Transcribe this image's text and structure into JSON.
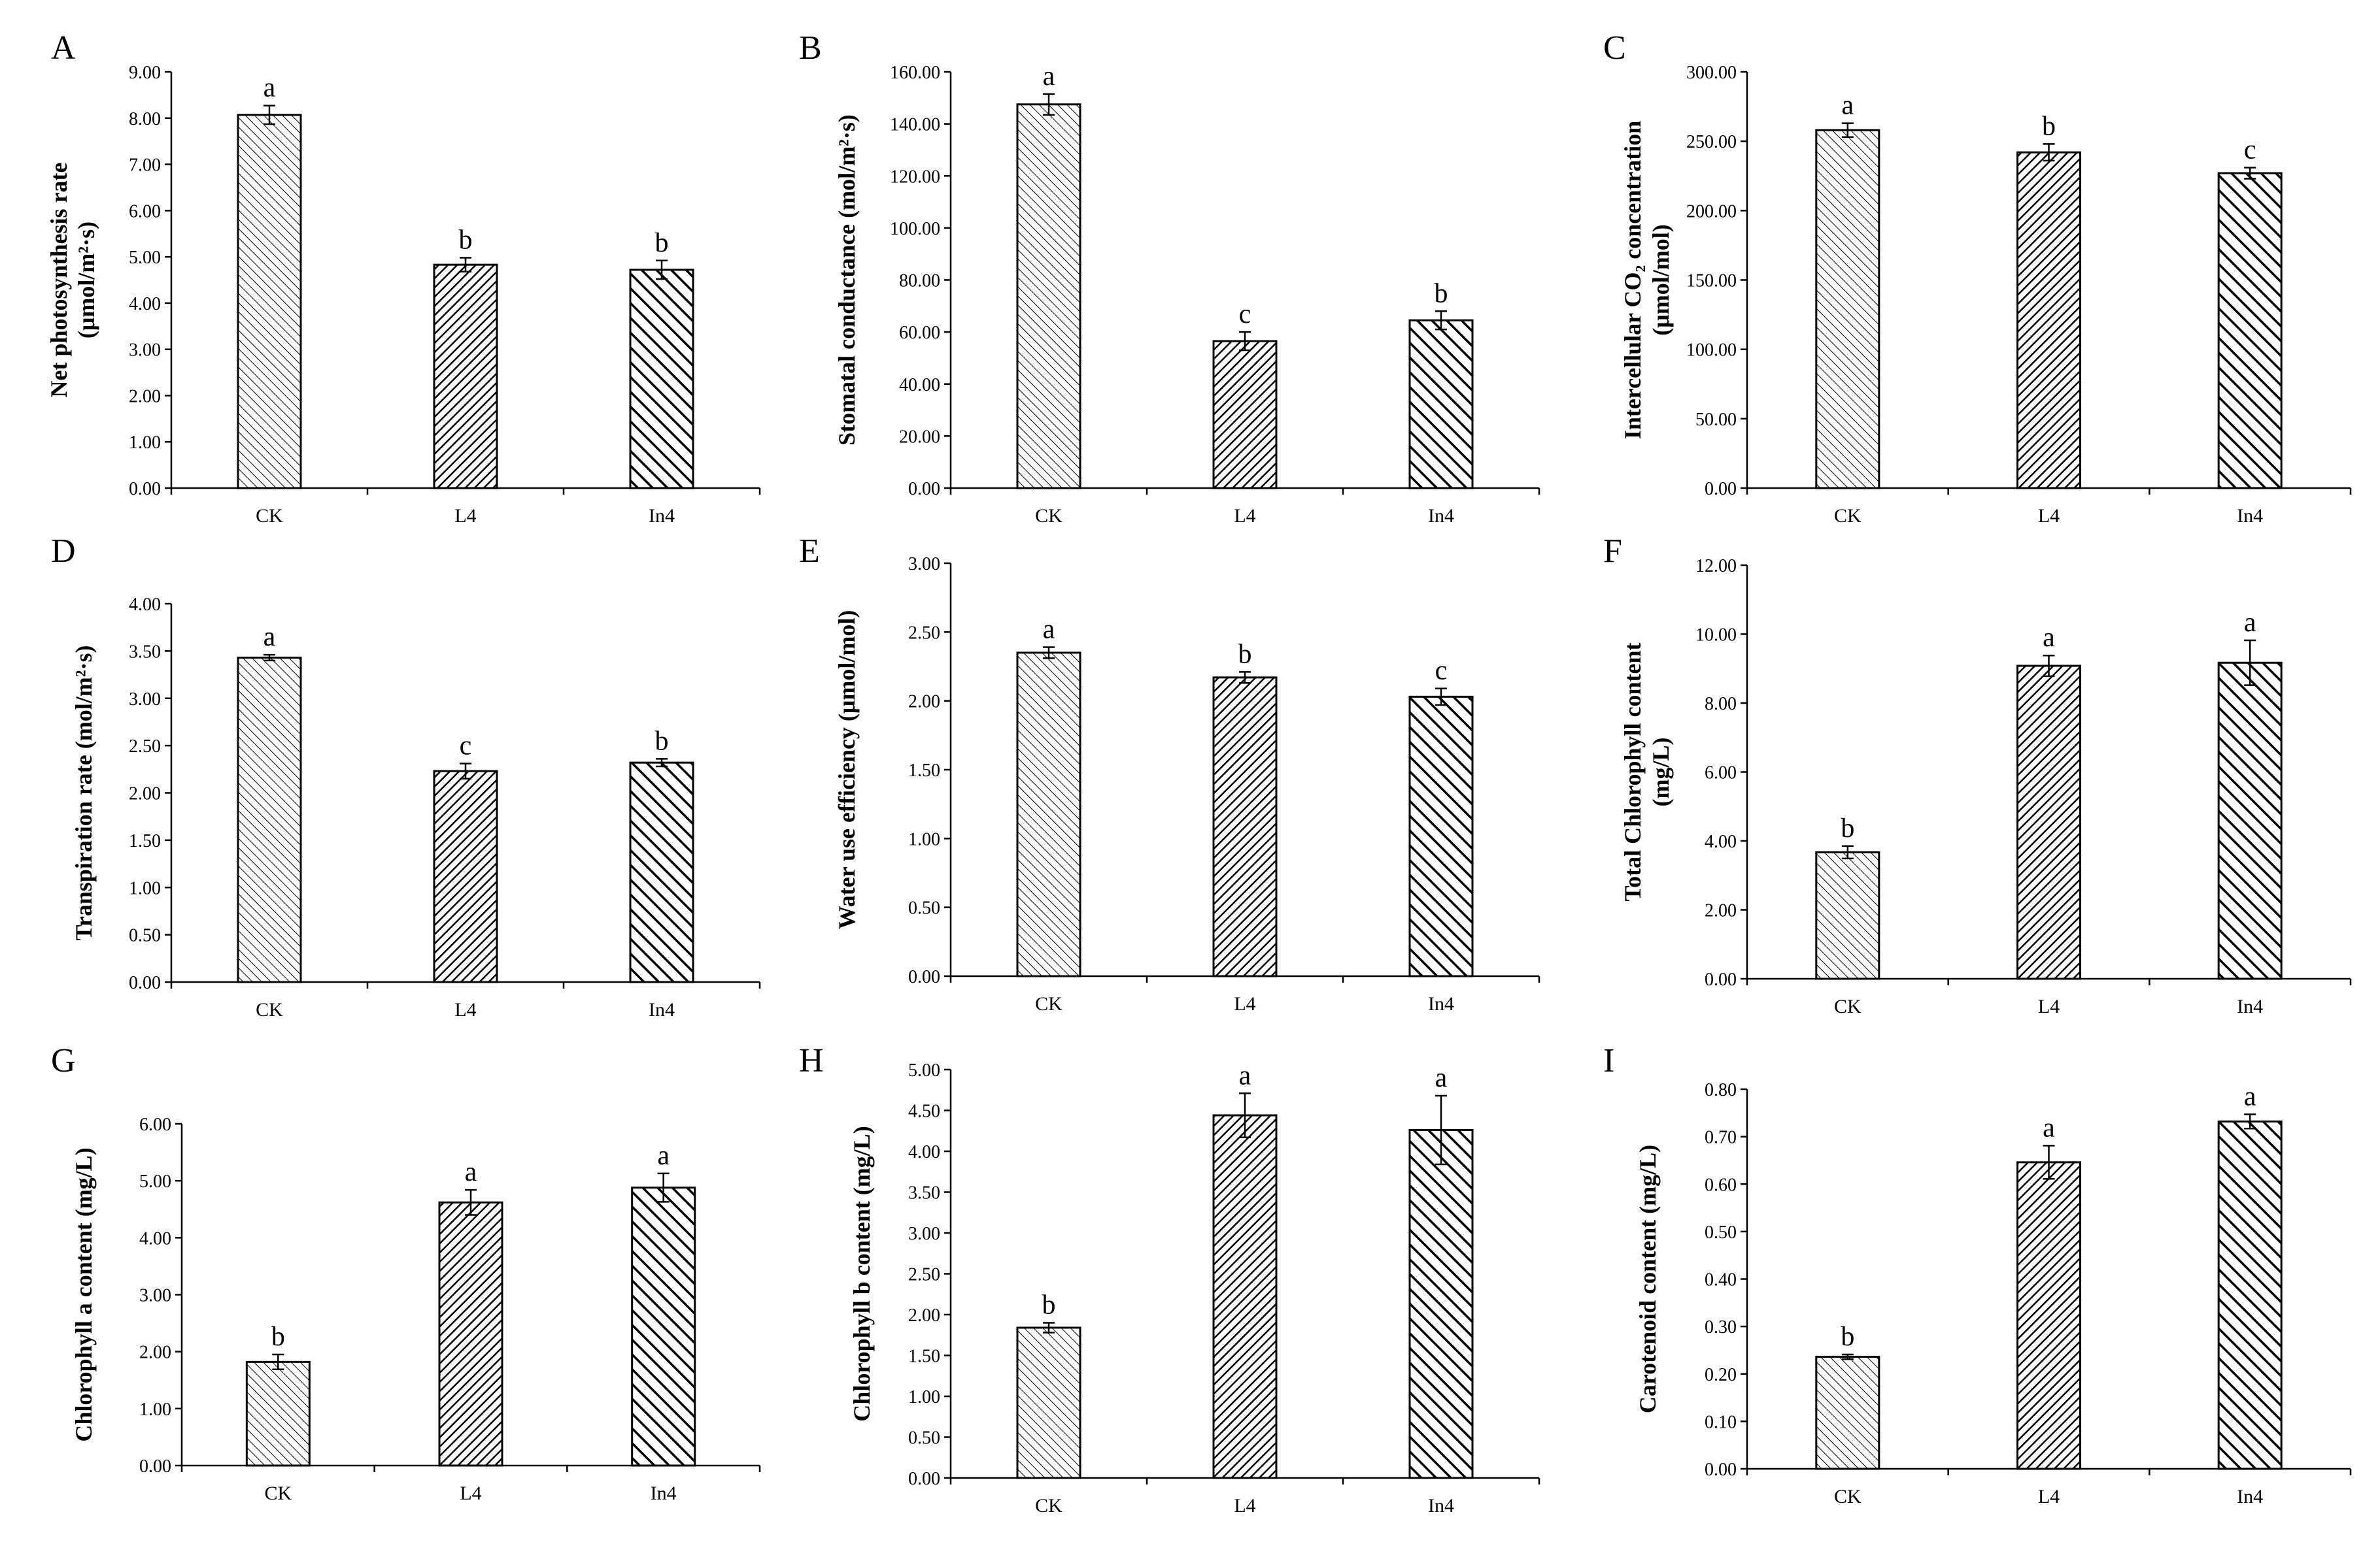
{
  "categories": [
    "CK",
    "L4",
    "In4"
  ],
  "colors": {
    "axis": "#000000",
    "background": "#ffffff"
  },
  "chart_data": [
    {
      "id": "A",
      "type": "bar",
      "letter": "A",
      "ylabel_lines": [
        "Net photosynthesis rate",
        "(μmol/m²·s)"
      ],
      "ylim": [
        0,
        9
      ],
      "ytick_step": 1,
      "ytick_labels": [
        "0.00",
        "1.00",
        "2.00",
        "3.00",
        "4.00",
        "5.00",
        "6.00",
        "7.00",
        "8.00",
        "9.00"
      ],
      "categories": [
        "CK",
        "L4",
        "In4"
      ],
      "values": [
        8.07,
        4.83,
        4.72
      ],
      "errors": [
        0.2,
        0.15,
        0.2
      ],
      "significance": [
        "a",
        "b",
        "b"
      ]
    },
    {
      "id": "B",
      "type": "bar",
      "letter": "B",
      "ylabel_lines": [
        "Stomatal conductance (mol/m²·s)"
      ],
      "ylim": [
        0,
        160
      ],
      "ytick_step": 20,
      "ytick_labels": [
        "0.00",
        "20.00",
        "40.00",
        "60.00",
        "80.00",
        "100.00",
        "120.00",
        "140.00",
        "160.00"
      ],
      "categories": [
        "CK",
        "L4",
        "In4"
      ],
      "values": [
        147.5,
        56.5,
        64.5
      ],
      "errors": [
        4.0,
        3.5,
        3.5
      ],
      "significance": [
        "a",
        "c",
        "b"
      ]
    },
    {
      "id": "C",
      "type": "bar",
      "letter": "C",
      "ylabel_lines": [
        "Intercellular CO₂ concentration",
        "(μmol/mol)"
      ],
      "ylim": [
        0,
        300
      ],
      "ytick_step": 50,
      "ytick_labels": [
        "0.00",
        "50.00",
        "100.00",
        "150.00",
        "200.00",
        "250.00",
        "300.00"
      ],
      "categories": [
        "CK",
        "L4",
        "In4"
      ],
      "values": [
        258,
        242,
        227
      ],
      "errors": [
        5,
        6,
        4
      ],
      "significance": [
        "a",
        "b",
        "c"
      ]
    },
    {
      "id": "D",
      "type": "bar",
      "letter": "D",
      "ylabel_lines": [
        "Transpiration rate (mol/m²·s)"
      ],
      "ylim": [
        0,
        4
      ],
      "ytick_step": 0.5,
      "ytick_labels": [
        "0.00",
        "0.50",
        "1.00",
        "1.50",
        "2.00",
        "2.50",
        "3.00",
        "3.50",
        "4.00"
      ],
      "categories": [
        "CK",
        "L4",
        "In4"
      ],
      "values": [
        3.43,
        2.23,
        2.32
      ],
      "errors": [
        0.03,
        0.08,
        0.04
      ],
      "significance": [
        "a",
        "c",
        "b"
      ]
    },
    {
      "id": "E",
      "type": "bar",
      "letter": "E",
      "ylabel_lines": [
        "Water use efficiency (μmol/mol)"
      ],
      "ylim": [
        0,
        3
      ],
      "ytick_step": 0.5,
      "ytick_labels": [
        "0.00",
        "0.50",
        "1.00",
        "1.50",
        "2.00",
        "2.50",
        "3.00"
      ],
      "categories": [
        "CK",
        "L4",
        "In4"
      ],
      "values": [
        2.35,
        2.17,
        2.03
      ],
      "errors": [
        0.04,
        0.04,
        0.06
      ],
      "significance": [
        "a",
        "b",
        "c"
      ]
    },
    {
      "id": "F",
      "type": "bar",
      "letter": "F",
      "ylabel_lines": [
        "Total Chlorophyll content",
        "(mg/L)"
      ],
      "ylim": [
        0,
        12
      ],
      "ytick_step": 2,
      "ytick_labels": [
        "0.00",
        "2.00",
        "4.00",
        "6.00",
        "8.00",
        "10.00",
        "12.00"
      ],
      "categories": [
        "CK",
        "L4",
        "In4"
      ],
      "values": [
        3.67,
        9.08,
        9.17
      ],
      "errors": [
        0.18,
        0.3,
        0.65
      ],
      "significance": [
        "b",
        "a",
        "a"
      ]
    },
    {
      "id": "G",
      "type": "bar",
      "letter": "G",
      "ylabel_lines": [
        "Chlorophyll a content (mg/L)"
      ],
      "ylim": [
        0,
        6
      ],
      "ytick_step": 1,
      "ytick_labels": [
        "0.00",
        "1.00",
        "2.00",
        "3.00",
        "4.00",
        "5.00",
        "6.00"
      ],
      "categories": [
        "CK",
        "L4",
        "In4"
      ],
      "values": [
        1.82,
        4.62,
        4.88
      ],
      "errors": [
        0.13,
        0.22,
        0.25
      ],
      "significance": [
        "b",
        "a",
        "a"
      ]
    },
    {
      "id": "H",
      "type": "bar",
      "letter": "H",
      "ylabel_lines": [
        "Chlorophyll b content (mg/L)"
      ],
      "ylim": [
        0,
        5
      ],
      "ytick_step": 0.5,
      "ytick_labels": [
        "0.00",
        "0.50",
        "1.00",
        "1.50",
        "2.00",
        "2.50",
        "3.00",
        "3.50",
        "4.00",
        "4.50",
        "5.00"
      ],
      "categories": [
        "CK",
        "L4",
        "In4"
      ],
      "values": [
        1.84,
        4.44,
        4.26
      ],
      "errors": [
        0.06,
        0.27,
        0.42
      ],
      "significance": [
        "b",
        "a",
        "a"
      ]
    },
    {
      "id": "I",
      "type": "bar",
      "letter": "I",
      "ylabel_lines": [
        "Carotenoid content (mg/L)"
      ],
      "ylim": [
        0,
        0.8
      ],
      "ytick_step": 0.1,
      "ytick_labels": [
        "0.00",
        "0.10",
        "0.20",
        "0.30",
        "0.40",
        "0.50",
        "0.60",
        "0.70",
        "0.80"
      ],
      "categories": [
        "CK",
        "L4",
        "In4"
      ],
      "values": [
        0.236,
        0.646,
        0.732
      ],
      "errors": [
        0.005,
        0.035,
        0.015
      ],
      "significance": [
        "b",
        "a",
        "a"
      ]
    }
  ]
}
